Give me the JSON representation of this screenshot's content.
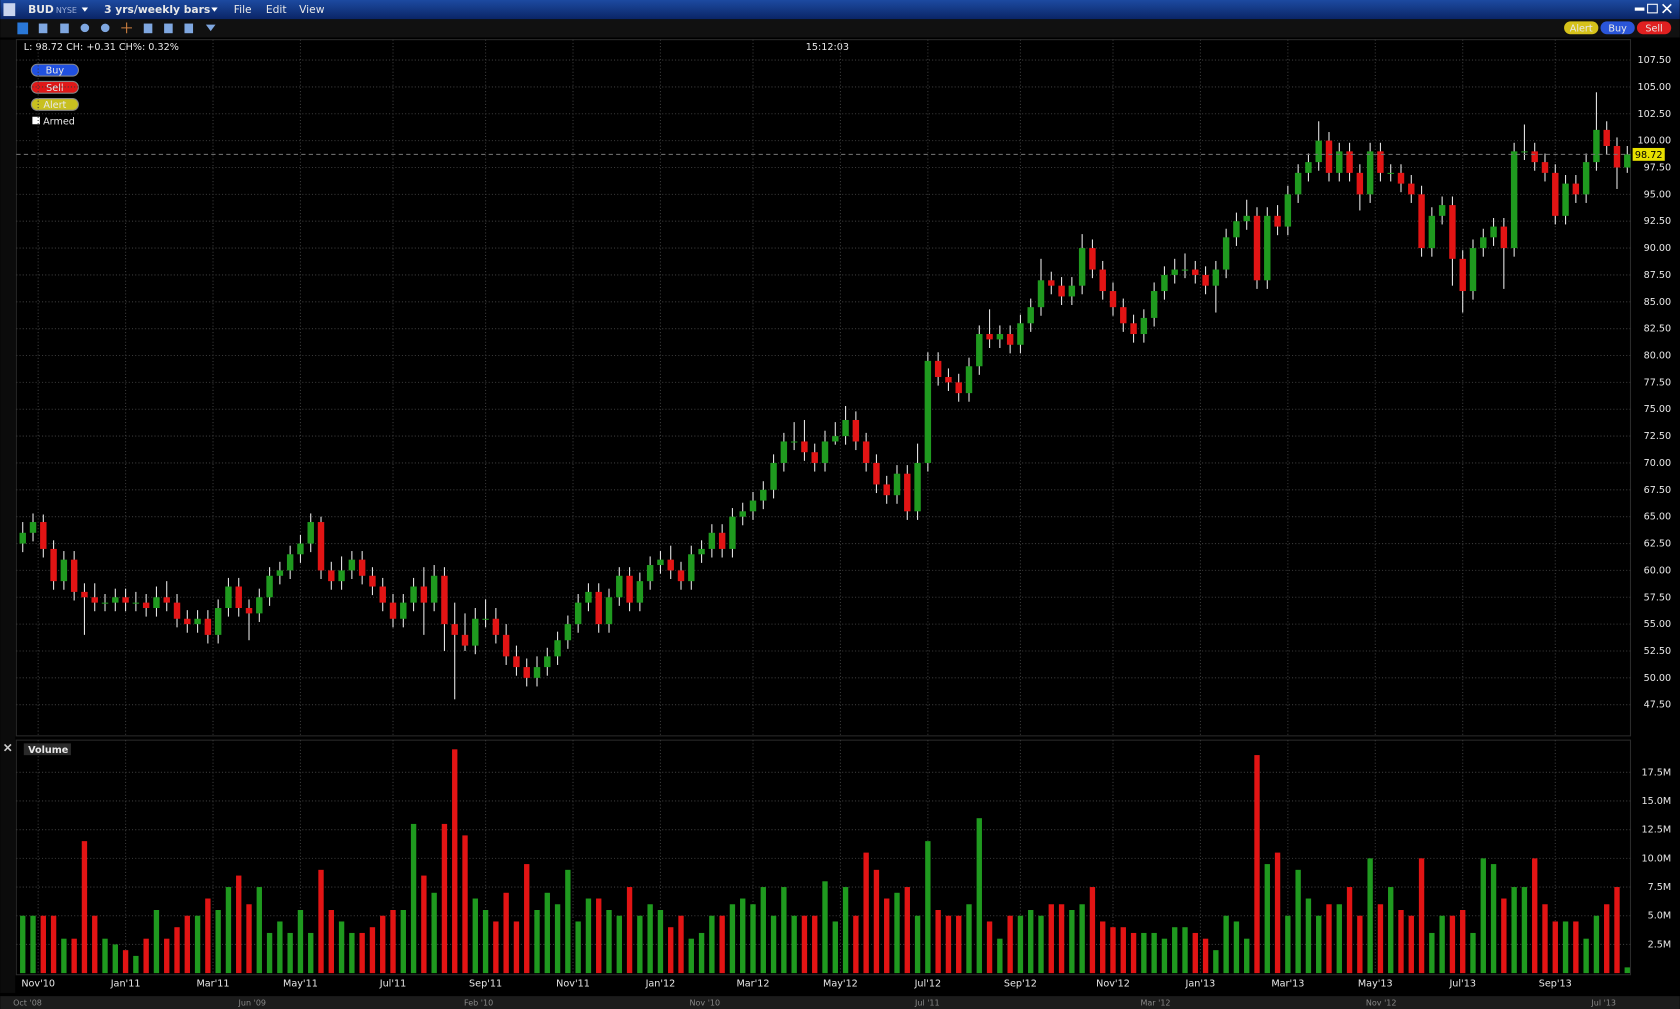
{
  "window": {
    "symbol": "BUD",
    "exchange": "NYSE",
    "period": "3 yrs/weekly bars",
    "menu": [
      "File",
      "Edit",
      "View"
    ],
    "toolbar_buttons": [
      "Alert",
      "Buy",
      "Sell"
    ]
  },
  "chart_data": [
    {
      "type": "candlestick",
      "info": "L: 98.72 CH: +0.31 CH%: 0.32%",
      "time": "15:12:03",
      "order_buttons": [
        "Buy",
        "Sell",
        "Alert"
      ],
      "armed": "Armed",
      "up_color": "#1f9a1f",
      "down_color": "#e21414",
      "grid": true,
      "ylim": [
        44.6,
        109.4
      ],
      "yticks": [
        {
          "value": 47.5,
          "label": "47.50"
        },
        {
          "value": 50,
          "label": "50.00"
        },
        {
          "value": 52.5,
          "label": "52.50"
        },
        {
          "value": 55,
          "label": "55.00"
        },
        {
          "value": 57.5,
          "label": "57.50"
        },
        {
          "value": 60,
          "label": "60.00"
        },
        {
          "value": 62.5,
          "label": "62.50"
        },
        {
          "value": 65,
          "label": "65.00"
        },
        {
          "value": 67.5,
          "label": "67.50"
        },
        {
          "value": 70,
          "label": "70.00"
        },
        {
          "value": 72.5,
          "label": "72.50"
        },
        {
          "value": 75,
          "label": "75.00"
        },
        {
          "value": 77.5,
          "label": "77.50"
        },
        {
          "value": 80,
          "label": "80.00"
        },
        {
          "value": 82.5,
          "label": "82.50"
        },
        {
          "value": 85,
          "label": "85.00"
        },
        {
          "value": 87.5,
          "label": "87.50"
        },
        {
          "value": 90,
          "label": "90.00"
        },
        {
          "value": 92.5,
          "label": "92.50"
        },
        {
          "value": 95,
          "label": "95.00"
        },
        {
          "value": 97.5,
          "label": "97.50"
        },
        {
          "value": 100,
          "label": "100.00"
        },
        {
          "value": 102.5,
          "label": "102.50"
        },
        {
          "value": 105,
          "label": "105.00"
        },
        {
          "value": 107.5,
          "label": "107.50"
        }
      ],
      "xticks": [
        {
          "value": 1.5,
          "label": "Nov'10"
        },
        {
          "value": 10,
          "label": "Jan'11"
        },
        {
          "value": 18.5,
          "label": "Mar'11"
        },
        {
          "value": 27,
          "label": "May'11"
        },
        {
          "value": 36,
          "label": "Jul'11"
        },
        {
          "value": 45,
          "label": "Sep'11"
        },
        {
          "value": 53.5,
          "label": "Nov'11"
        },
        {
          "value": 62,
          "label": "Jan'12"
        },
        {
          "value": 71,
          "label": "Mar'12"
        },
        {
          "value": 79.5,
          "label": "May'12"
        },
        {
          "value": 88,
          "label": "Jul'12"
        },
        {
          "value": 97,
          "label": "Sep'12"
        },
        {
          "value": 106,
          "label": "Nov'12"
        },
        {
          "value": 114.5,
          "label": "Jan'13"
        },
        {
          "value": 123,
          "label": "Mar'13"
        },
        {
          "value": 131.5,
          "label": "May'13"
        },
        {
          "value": 140,
          "label": "Jul'13"
        },
        {
          "value": 149,
          "label": "Sep'13"
        }
      ],
      "candles": [
        [
          62.5,
          64.5,
          61.7,
          63.5
        ],
        [
          63.5,
          65.3,
          62.7,
          64.5
        ],
        [
          64.5,
          65.2,
          61.2,
          62
        ],
        [
          62,
          62.8,
          58.2,
          59
        ],
        [
          59,
          61.8,
          58.2,
          61
        ],
        [
          61,
          61.8,
          57.2,
          58
        ],
        [
          58,
          58.8,
          54,
          57.5
        ],
        [
          57.5,
          58.8,
          56.2,
          57
        ],
        [
          57,
          57.8,
          56.2,
          57
        ],
        [
          57,
          58.3,
          56.2,
          57.5
        ],
        [
          57.5,
          58.3,
          56.2,
          57
        ],
        [
          57,
          58,
          56.2,
          57
        ],
        [
          57,
          57.8,
          55.7,
          56.5
        ],
        [
          56.5,
          58.5,
          55.7,
          57.5
        ],
        [
          57.5,
          59,
          56.2,
          57
        ],
        [
          57,
          57.8,
          54.7,
          55.5
        ],
        [
          55.5,
          56.3,
          54.2,
          55
        ],
        [
          55,
          56.3,
          54.2,
          55.5
        ],
        [
          55.5,
          56.3,
          53.2,
          54
        ],
        [
          54,
          57.3,
          53.2,
          56.5
        ],
        [
          56.5,
          59.3,
          55.7,
          58.5
        ],
        [
          58.5,
          59.3,
          55.7,
          56.5
        ],
        [
          56.5,
          57.3,
          53.5,
          56
        ],
        [
          56,
          58.3,
          55.2,
          57.5
        ],
        [
          57.5,
          60.3,
          56.7,
          59.5
        ],
        [
          59.5,
          60.8,
          58.7,
          60
        ],
        [
          60,
          62.3,
          59.2,
          61.5
        ],
        [
          61.5,
          63.3,
          60.7,
          62.5
        ],
        [
          62.5,
          65.3,
          61.7,
          64.5
        ],
        [
          64.5,
          65,
          59.2,
          60
        ],
        [
          60,
          60.8,
          58.2,
          59
        ],
        [
          59,
          61.3,
          58.2,
          60
        ],
        [
          60,
          61.8,
          59.2,
          61
        ],
        [
          61,
          61.8,
          58.7,
          59.5
        ],
        [
          59.5,
          60.3,
          57.7,
          58.5
        ],
        [
          58.5,
          59.3,
          56.2,
          57
        ],
        [
          57,
          57.8,
          54.7,
          55.5
        ],
        [
          55.5,
          57.8,
          54.7,
          57
        ],
        [
          57,
          59.3,
          56.2,
          58.5
        ],
        [
          58.5,
          60.3,
          54,
          57
        ],
        [
          57,
          60.5,
          56.2,
          59.5
        ],
        [
          59.5,
          60.3,
          52.5,
          55
        ],
        [
          55,
          57,
          48,
          54
        ],
        [
          54,
          56,
          52.5,
          53
        ],
        [
          53,
          56.5,
          52.2,
          55.5
        ],
        [
          55.5,
          57.3,
          54.7,
          55.5
        ],
        [
          55.5,
          56.5,
          53.2,
          54
        ],
        [
          54,
          55,
          51.2,
          52
        ],
        [
          52,
          53,
          50.2,
          51
        ],
        [
          51,
          51.8,
          49.2,
          50
        ],
        [
          50,
          52,
          49.2,
          51
        ],
        [
          51,
          52.8,
          50.2,
          52
        ],
        [
          52,
          54.3,
          51.2,
          53.5
        ],
        [
          53.5,
          55.8,
          52.7,
          55
        ],
        [
          55,
          57.8,
          54.2,
          57
        ],
        [
          57,
          58.8,
          56.2,
          58
        ],
        [
          58,
          58.8,
          54.2,
          55
        ],
        [
          55,
          58.3,
          54.2,
          57.5
        ],
        [
          57.5,
          60.3,
          56.7,
          59.5
        ],
        [
          59.5,
          60.3,
          56.2,
          57
        ],
        [
          57,
          59.8,
          56.2,
          59
        ],
        [
          59,
          61.3,
          58.2,
          60.5
        ],
        [
          60.5,
          61.8,
          59.7,
          61
        ],
        [
          61,
          62.3,
          59.2,
          60
        ],
        [
          60,
          60.8,
          58.2,
          59
        ],
        [
          59,
          62.3,
          58.2,
          61.5
        ],
        [
          61.5,
          62.8,
          60.7,
          62
        ],
        [
          62,
          64.3,
          61.2,
          63.5
        ],
        [
          63.5,
          64.3,
          61.2,
          62
        ],
        [
          62,
          65.8,
          61.2,
          65
        ],
        [
          65,
          66.3,
          64.2,
          65.5
        ],
        [
          65.5,
          67.3,
          64.7,
          66.5
        ],
        [
          66.5,
          68.3,
          65.7,
          67.5
        ],
        [
          67.5,
          70.8,
          66.7,
          70
        ],
        [
          70,
          72.8,
          69.2,
          72
        ],
        [
          72,
          73.8,
          71.2,
          72
        ],
        [
          72,
          74,
          70.2,
          71
        ],
        [
          71,
          71.8,
          69.2,
          70
        ],
        [
          70,
          73,
          69.2,
          72
        ],
        [
          72,
          73.8,
          71.7,
          72.5
        ],
        [
          72.5,
          75.3,
          71.7,
          74
        ],
        [
          74,
          74.8,
          71.2,
          72
        ],
        [
          72,
          72.8,
          69.2,
          70
        ],
        [
          70,
          70.8,
          67.2,
          68
        ],
        [
          68,
          68.8,
          66.2,
          67
        ],
        [
          67,
          69.8,
          66.2,
          69
        ],
        [
          69,
          69.8,
          64.7,
          65.5
        ],
        [
          65.5,
          71.8,
          64.7,
          70
        ],
        [
          70,
          80.3,
          69.2,
          79.5
        ],
        [
          79.5,
          80.3,
          77.2,
          78
        ],
        [
          78,
          78.8,
          76.7,
          77.5
        ],
        [
          77.5,
          78.3,
          75.7,
          76.5
        ],
        [
          76.5,
          79.8,
          75.7,
          79
        ],
        [
          79,
          82.8,
          78.2,
          82
        ],
        [
          82,
          84.3,
          80.7,
          81.5
        ],
        [
          81.5,
          82.8,
          80.7,
          82
        ],
        [
          82,
          82.8,
          80.2,
          81
        ],
        [
          81,
          83.8,
          80.2,
          83
        ],
        [
          83,
          85.3,
          82.2,
          84.5
        ],
        [
          84.5,
          89,
          83.7,
          87
        ],
        [
          87,
          87.8,
          85.7,
          86.5
        ],
        [
          86.5,
          87.3,
          84.7,
          85.5
        ],
        [
          85.5,
          87.3,
          84.7,
          86.5
        ],
        [
          86.5,
          91.3,
          85.7,
          90
        ],
        [
          90,
          90.8,
          87.2,
          88
        ],
        [
          88,
          88.8,
          85.2,
          86
        ],
        [
          86,
          86.8,
          83.7,
          84.5
        ],
        [
          84.5,
          85.3,
          82.2,
          83
        ],
        [
          83,
          83.8,
          81.2,
          82
        ],
        [
          82,
          84.3,
          81.2,
          83.5
        ],
        [
          83.5,
          86.8,
          82.7,
          86
        ],
        [
          86,
          88.3,
          85.2,
          87.5
        ],
        [
          87.5,
          89,
          86.7,
          88
        ],
        [
          88,
          89.5,
          87.2,
          88
        ],
        [
          88,
          88.8,
          86.7,
          87.5
        ],
        [
          87.5,
          88.3,
          85.7,
          86.5
        ],
        [
          86.5,
          88.8,
          84,
          88
        ],
        [
          88,
          91.8,
          87.2,
          91
        ],
        [
          91,
          93.3,
          90.2,
          92.5
        ],
        [
          92.5,
          94.5,
          91.7,
          93
        ],
        [
          93,
          93.8,
          86.2,
          87
        ],
        [
          87,
          93.8,
          86.2,
          93
        ],
        [
          93,
          94,
          91.2,
          92
        ],
        [
          92,
          95.8,
          91.2,
          95
        ],
        [
          95,
          97.8,
          94.2,
          97
        ],
        [
          97,
          98.8,
          96.2,
          98
        ],
        [
          98,
          101.8,
          97.2,
          100
        ],
        [
          100,
          100.8,
          96.2,
          97
        ],
        [
          97,
          99.8,
          96.2,
          99
        ],
        [
          99,
          99.8,
          96.2,
          97
        ],
        [
          97,
          97.8,
          93.5,
          95
        ],
        [
          95,
          99.8,
          94.2,
          99
        ],
        [
          99,
          99.8,
          96.2,
          97
        ],
        [
          97,
          97.8,
          96.2,
          97
        ],
        [
          97,
          97.8,
          95.2,
          96
        ],
        [
          96,
          96.8,
          94.2,
          95
        ],
        [
          95,
          95.8,
          89.2,
          90
        ],
        [
          90,
          93.8,
          89.2,
          93
        ],
        [
          93,
          94.8,
          92.2,
          94
        ],
        [
          94,
          94.8,
          86.5,
          89
        ],
        [
          89,
          89.8,
          84,
          86
        ],
        [
          86,
          90.8,
          85.2,
          90
        ],
        [
          90,
          91.8,
          89.2,
          91
        ],
        [
          91,
          92.8,
          90.2,
          92
        ],
        [
          92,
          92.8,
          86.2,
          90
        ],
        [
          90,
          99.8,
          89.2,
          99
        ],
        [
          99,
          101.5,
          98.2,
          99
        ],
        [
          99,
          99.8,
          97.2,
          98
        ],
        [
          98,
          98.8,
          96.2,
          97
        ],
        [
          97,
          97.8,
          92.2,
          93
        ],
        [
          93,
          96.8,
          92.2,
          96
        ],
        [
          96,
          96.8,
          94.2,
          95
        ],
        [
          95,
          98.8,
          94.2,
          98
        ],
        [
          98,
          104.5,
          97.2,
          101
        ],
        [
          101,
          101.8,
          98.7,
          99.5
        ],
        [
          99.5,
          100.3,
          95.5,
          97.5
        ],
        [
          97.5,
          99.5,
          97,
          98.72
        ]
      ]
    },
    {
      "type": "bar",
      "title": "Volume",
      "ylim": [
        0,
        20.3
      ],
      "yticks": [
        {
          "value": 2.5,
          "label": "2.5M"
        },
        {
          "value": 5,
          "label": "5.0M"
        },
        {
          "value": 7.5,
          "label": "7.5M"
        },
        {
          "value": 10,
          "label": "10.0M"
        },
        {
          "value": 12.5,
          "label": "12.5M"
        },
        {
          "value": 15,
          "label": "15.0M"
        },
        {
          "value": 17.5,
          "label": "17.5M"
        }
      ],
      "values": [
        5,
        5,
        5,
        5,
        3,
        3,
        11.5,
        5,
        3,
        2.5,
        2,
        1.5,
        3,
        5.5,
        3,
        4,
        5,
        5,
        6.5,
        5.5,
        7.5,
        8.5,
        6,
        7.5,
        3.5,
        4.5,
        3.5,
        5.5,
        3.5,
        9,
        5.5,
        4.5,
        3.5,
        3.5,
        4,
        5,
        5.5,
        5.5,
        13,
        8.5,
        7,
        13,
        19.5,
        12,
        6.5,
        5.5,
        4.5,
        7,
        4.5,
        9.5,
        5.5,
        7,
        6,
        9,
        4.5,
        6.5,
        6.5,
        5.5,
        5,
        7.5,
        5,
        6,
        5.5,
        4,
        5,
        3,
        3.5,
        5,
        5,
        6,
        6.5,
        6,
        7.5,
        5,
        7.5,
        5,
        5,
        5,
        8,
        4.5,
        7.5,
        5,
        10.5,
        9,
        6.5,
        7,
        7.5,
        5,
        11.5,
        5.5,
        5,
        5,
        6,
        13.5,
        4.5,
        3,
        5,
        5,
        5.5,
        5,
        6,
        6,
        5.5,
        6,
        7.5,
        4.5,
        4,
        4,
        3.5,
        3.5,
        3.5,
        3,
        4,
        4,
        3.5,
        3,
        2,
        5,
        4.5,
        3,
        19,
        9.5,
        10.5,
        5,
        9,
        6.5,
        5,
        6,
        6,
        7.5,
        5,
        10,
        6,
        7.5,
        5.5,
        5,
        10,
        3.5,
        5,
        5,
        5.5,
        3.5,
        10,
        9.5,
        6.5,
        7.5,
        7.5,
        10,
        6,
        4.5,
        4.5,
        4.5,
        3,
        5,
        6,
        7.5,
        0.5
      ]
    }
  ],
  "navigator": [
    "Oct '08",
    "Jun '09",
    "Feb '10",
    "Nov '10",
    "Jul '11",
    "Mar '12",
    "Nov '12",
    "Jul '13"
  ]
}
